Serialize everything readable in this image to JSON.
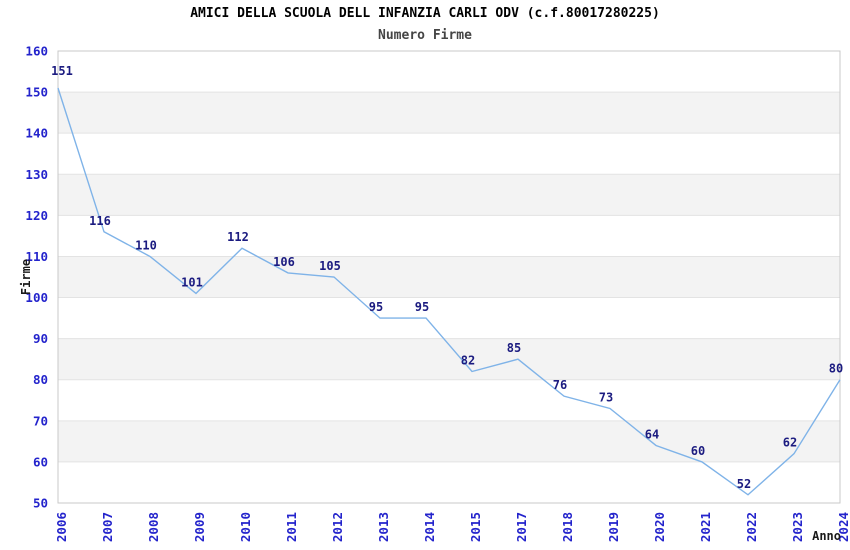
{
  "chart_data": {
    "type": "line",
    "title": "AMICI DELLA SCUOLA DELL INFANZIA CARLI ODV (c.f.80017280225)",
    "subtitle": "Numero Firme",
    "xlabel": "Anno",
    "ylabel": "Firme",
    "categories": [
      "2006",
      "2007",
      "2008",
      "2009",
      "2010",
      "2011",
      "2012",
      "2013",
      "2014",
      "2015",
      "2017",
      "2018",
      "2019",
      "2020",
      "2021",
      "2022",
      "2023",
      "2024"
    ],
    "values": [
      151,
      116,
      110,
      101,
      112,
      106,
      105,
      95,
      95,
      82,
      85,
      76,
      73,
      64,
      60,
      52,
      62,
      80
    ],
    "point_labels": [
      "151",
      "116",
      "110",
      "101",
      "112",
      "106",
      "105",
      "95",
      "95",
      "82",
      "85",
      "76",
      "73",
      "64",
      "60",
      "52",
      "62",
      "80"
    ],
    "ylim": [
      50,
      160
    ],
    "ytick_step": 10,
    "yticks": [
      50,
      60,
      70,
      80,
      90,
      100,
      110,
      120,
      130,
      140,
      150,
      160
    ],
    "grid": "horizontal-bands-alternating",
    "legend": "none",
    "note": "year 2016 absent from x axis"
  },
  "colors": {
    "line": "#7fb3e8",
    "tick_label": "#2424cc",
    "point_label": "#1b1b80",
    "band_gray": "#f3f3f3",
    "band_white": "#ffffff",
    "gridline": "#e3e3e3",
    "plot_border": "#c9c9c9",
    "title": "#000000",
    "subtitle": "#454545",
    "axis_label": "#1a1a1a",
    "background": "#ffffff"
  }
}
